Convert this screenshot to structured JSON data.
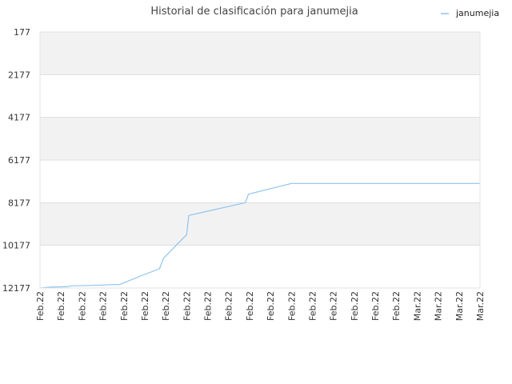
{
  "chart_data": {
    "type": "line",
    "title": "Historial de clasificación para janumejia",
    "xlabel": "",
    "ylabel": "",
    "y_axis": "inverted",
    "ylim": [
      12177,
      177
    ],
    "yticks": [
      177,
      2177,
      4177,
      6177,
      8177,
      10177,
      12177
    ],
    "x_tick_labels": [
      "Feb.22",
      "Feb.22",
      "Feb.22",
      "Feb.22",
      "Feb.22",
      "Feb.22",
      "Feb.22",
      "Feb.22",
      "Feb.22",
      "Feb.22",
      "Feb.22",
      "Feb.22",
      "Feb.22",
      "Feb.22",
      "Feb.22",
      "Feb.22",
      "Feb.22",
      "Feb.22",
      "Mar.22",
      "Mar.22",
      "Mar.22",
      "Mar.22"
    ],
    "grid": true,
    "legend": "top-right",
    "colors": {
      "line": "#8fc3ee",
      "band": "#f2f2f2",
      "grid": "#dddddd"
    },
    "series": [
      {
        "name": "janumejia",
        "x": [
          0,
          0.5,
          1.3,
          1.5,
          2.4,
          3.0,
          3.5,
          3.8,
          4.9,
          5.7,
          5.9,
          7.0,
          7.1,
          9.8,
          9.95,
          12.0,
          21.0
        ],
        "y": [
          12177,
          12137,
          12117,
          12077,
          12057,
          12037,
          12017,
          12017,
          11577,
          11277,
          10777,
          9677,
          8777,
          8177,
          7777,
          7277,
          7277
        ]
      }
    ]
  }
}
